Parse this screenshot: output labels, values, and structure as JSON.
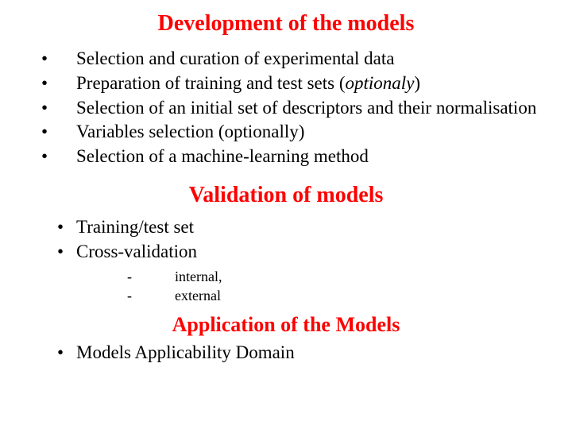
{
  "colors": {
    "heading": "#ff0000",
    "body_text": "#000000",
    "background": "#ffffff"
  },
  "fonts": {
    "family": "Times New Roman",
    "heading_size_pt": 21,
    "body_size_pt": 17,
    "sub_size_pt": 13
  },
  "sections": {
    "development": {
      "title": "Development of the models",
      "items": [
        {
          "text": "Selection and curation of experimental data"
        },
        {
          "text_pre": "Preparation of training and test sets (",
          "italic": "optionaly",
          "text_post": ")"
        },
        {
          "text": "Selection of an initial set of descriptors and their normalisation"
        },
        {
          "text": "Variables selection (optionally)"
        },
        {
          "text": "Selection of a machine-learning method"
        }
      ]
    },
    "validation": {
      "title": "Validation of models",
      "items": [
        {
          "text": "Training/test set"
        },
        {
          "text": "Cross-validation"
        }
      ],
      "subitems": [
        {
          "text": "internal,"
        },
        {
          "text": "external"
        }
      ]
    },
    "application": {
      "title": "Application of the Models",
      "items": [
        {
          "text": "Models Applicability Domain"
        }
      ]
    }
  }
}
